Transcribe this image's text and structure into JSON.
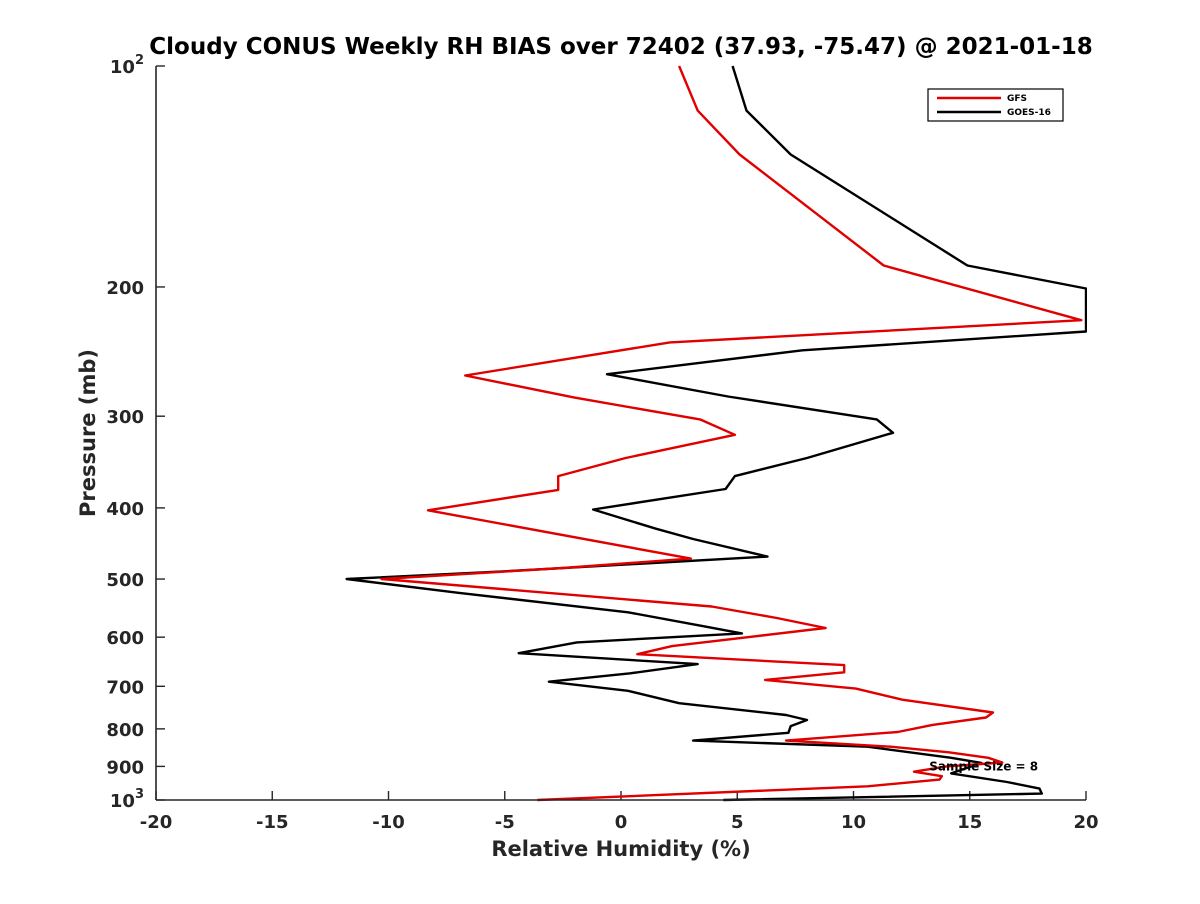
{
  "chart_data": {
    "type": "line",
    "title": "Cloudy CONUS Weekly RH BIAS over 72402 (37.93, -75.47) @ 2021-01-18",
    "xlabel": "Relative Humidity (%)",
    "ylabel": "Pressure (mb)",
    "xlim": [
      -20,
      20
    ],
    "ylim": [
      100,
      1000
    ],
    "y_scale": "log",
    "y_reversed": true,
    "x_ticks": [
      "-20",
      "-15",
      "-10",
      "-5",
      "0",
      "5",
      "10",
      "15",
      "20"
    ],
    "y_ticks": [
      {
        "value": 100,
        "base": "10",
        "exp": "2"
      },
      {
        "value": 200,
        "label": "200"
      },
      {
        "value": 300,
        "label": "300"
      },
      {
        "value": 400,
        "label": "400"
      },
      {
        "value": 500,
        "label": "500"
      },
      {
        "value": 600,
        "label": "600"
      },
      {
        "value": 700,
        "label": "700"
      },
      {
        "value": 800,
        "label": "800"
      },
      {
        "value": 900,
        "label": "900"
      },
      {
        "value": 1000,
        "base": "10",
        "exp": "3"
      }
    ],
    "grid": false,
    "legend_position": "top-right",
    "series": [
      {
        "name": "GFS",
        "color": "#e00000",
        "points": [
          [
            2.5,
            100
          ],
          [
            3.3,
            115
          ],
          [
            5.1,
            132
          ],
          [
            11.3,
            187
          ],
          [
            19.8,
            222
          ],
          [
            2.1,
            238
          ],
          [
            -6.7,
            264
          ],
          [
            -2.0,
            283
          ],
          [
            3.4,
            303
          ],
          [
            4.9,
            318
          ],
          [
            0.2,
            342
          ],
          [
            -2.7,
            362
          ],
          [
            -2.7,
            378
          ],
          [
            -8.3,
            403
          ],
          [
            3.0,
            469
          ],
          [
            -2.5,
            483
          ],
          [
            -10.3,
            500
          ],
          [
            3.9,
            545
          ],
          [
            6.7,
            565
          ],
          [
            8.8,
            583
          ],
          [
            2.2,
            617
          ],
          [
            0.7,
            633
          ],
          [
            9.6,
            655
          ],
          [
            9.6,
            670
          ],
          [
            6.2,
            686
          ],
          [
            10.1,
            705
          ],
          [
            12.1,
            730
          ],
          [
            16.0,
            760
          ],
          [
            15.7,
            772
          ],
          [
            13.4,
            790
          ],
          [
            11.9,
            808
          ],
          [
            7.1,
            830
          ],
          [
            11.6,
            846
          ],
          [
            14.1,
            861
          ],
          [
            15.8,
            876
          ],
          [
            16.4,
            889
          ],
          [
            14.0,
            900
          ],
          [
            12.6,
            915
          ],
          [
            13.8,
            928
          ],
          [
            13.7,
            938
          ],
          [
            10.6,
            958
          ],
          [
            -3.6,
            1000
          ]
        ]
      },
      {
        "name": "GOES-16",
        "color": "#000000",
        "points": [
          [
            4.8,
            100
          ],
          [
            5.4,
            115
          ],
          [
            7.3,
            132
          ],
          [
            14.9,
            187
          ],
          [
            20.0,
            201
          ],
          [
            20.0,
            230
          ],
          [
            7.8,
            244
          ],
          [
            -0.6,
            263
          ],
          [
            4.6,
            282
          ],
          [
            11.0,
            303
          ],
          [
            11.7,
            316
          ],
          [
            8.0,
            342
          ],
          [
            4.9,
            362
          ],
          [
            4.5,
            377
          ],
          [
            -1.2,
            402
          ],
          [
            1.5,
            427
          ],
          [
            3.1,
            441
          ],
          [
            6.3,
            466
          ],
          [
            -5.0,
            488
          ],
          [
            -11.8,
            500
          ],
          [
            -7.0,
            522
          ],
          [
            0.3,
            555
          ],
          [
            3.6,
            580
          ],
          [
            5.2,
            593
          ],
          [
            -1.9,
            610
          ],
          [
            -4.4,
            631
          ],
          [
            3.3,
            653
          ],
          [
            0.4,
            672
          ],
          [
            -3.1,
            690
          ],
          [
            0.3,
            710
          ],
          [
            2.5,
            738
          ],
          [
            7.1,
            766
          ],
          [
            8.0,
            778
          ],
          [
            7.3,
            793
          ],
          [
            7.2,
            810
          ],
          [
            3.1,
            830
          ],
          [
            10.6,
            846
          ],
          [
            14.2,
            876
          ],
          [
            15.5,
            890
          ],
          [
            14.2,
            920
          ],
          [
            16.6,
            945
          ],
          [
            18.0,
            965
          ],
          [
            18.1,
            980
          ],
          [
            4.4,
            1000
          ]
        ]
      }
    ],
    "annotations": [
      {
        "text": "Sample Size = 8",
        "x": 15.6,
        "y": 900
      }
    ]
  }
}
